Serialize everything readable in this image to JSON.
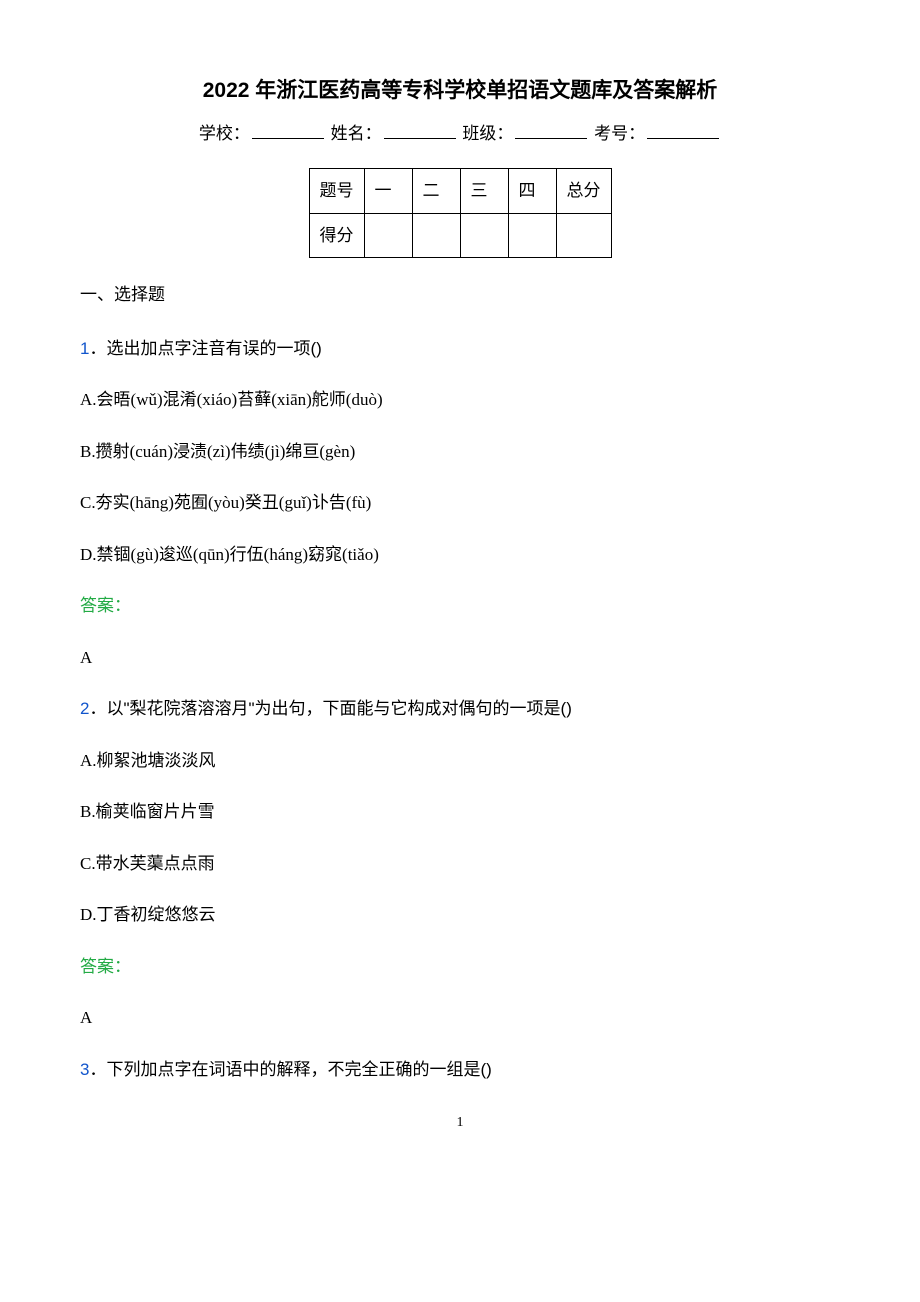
{
  "title": "2022 年浙江医药高等专科学校单招语文题库及答案解析",
  "info_labels": {
    "school": "学校：",
    "name": "姓名：",
    "class": "班级：",
    "exam_id": "考号："
  },
  "score_table": {
    "header_label": "题号",
    "score_label": "得分",
    "columns": [
      "一",
      "二",
      "三",
      "四",
      "总分"
    ]
  },
  "section_heading": "一、选择题",
  "questions": [
    {
      "num": "1",
      "sep": "．",
      "text": "选出加点字注音有误的一项()",
      "options": [
        "A.会晤(wǔ)混淆(xiáo)苔藓(xiān)舵师(duò)",
        "B.攒射(cuán)浸渍(zì)伟绩(jì)绵亘(gèn)",
        "C.夯实(hāng)苑囿(yòu)癸丑(guǐ)讣告(fù)",
        "D.禁锢(gù)逡巡(qūn)行伍(háng)窈窕(tiǎo)"
      ],
      "answer_label": "答案：",
      "answer": "A"
    },
    {
      "num": "2",
      "sep": "．",
      "text": "以\"梨花院落溶溶月\"为出句，下面能与它构成对偶句的一项是()",
      "options": [
        "A.柳絮池塘淡淡风",
        "B.榆荚临窗片片雪",
        "C.带水芙蕖点点雨",
        "D.丁香初绽悠悠云"
      ],
      "answer_label": "答案：",
      "answer": "A"
    },
    {
      "num": "3",
      "sep": "．",
      "text": "下列加点字在词语中的解释，不完全正确的一组是()",
      "options": [],
      "answer_label": "",
      "answer": ""
    }
  ],
  "page_number": "1",
  "colors": {
    "question_number": "#1155cc",
    "answer_label": "#22aa44",
    "text": "#000000",
    "background": "#ffffff"
  },
  "typography": {
    "title_fontsize": 21,
    "body_fontsize": 17,
    "page_number_fontsize": 14,
    "title_font": "SimHei",
    "body_font": "SimSun"
  }
}
